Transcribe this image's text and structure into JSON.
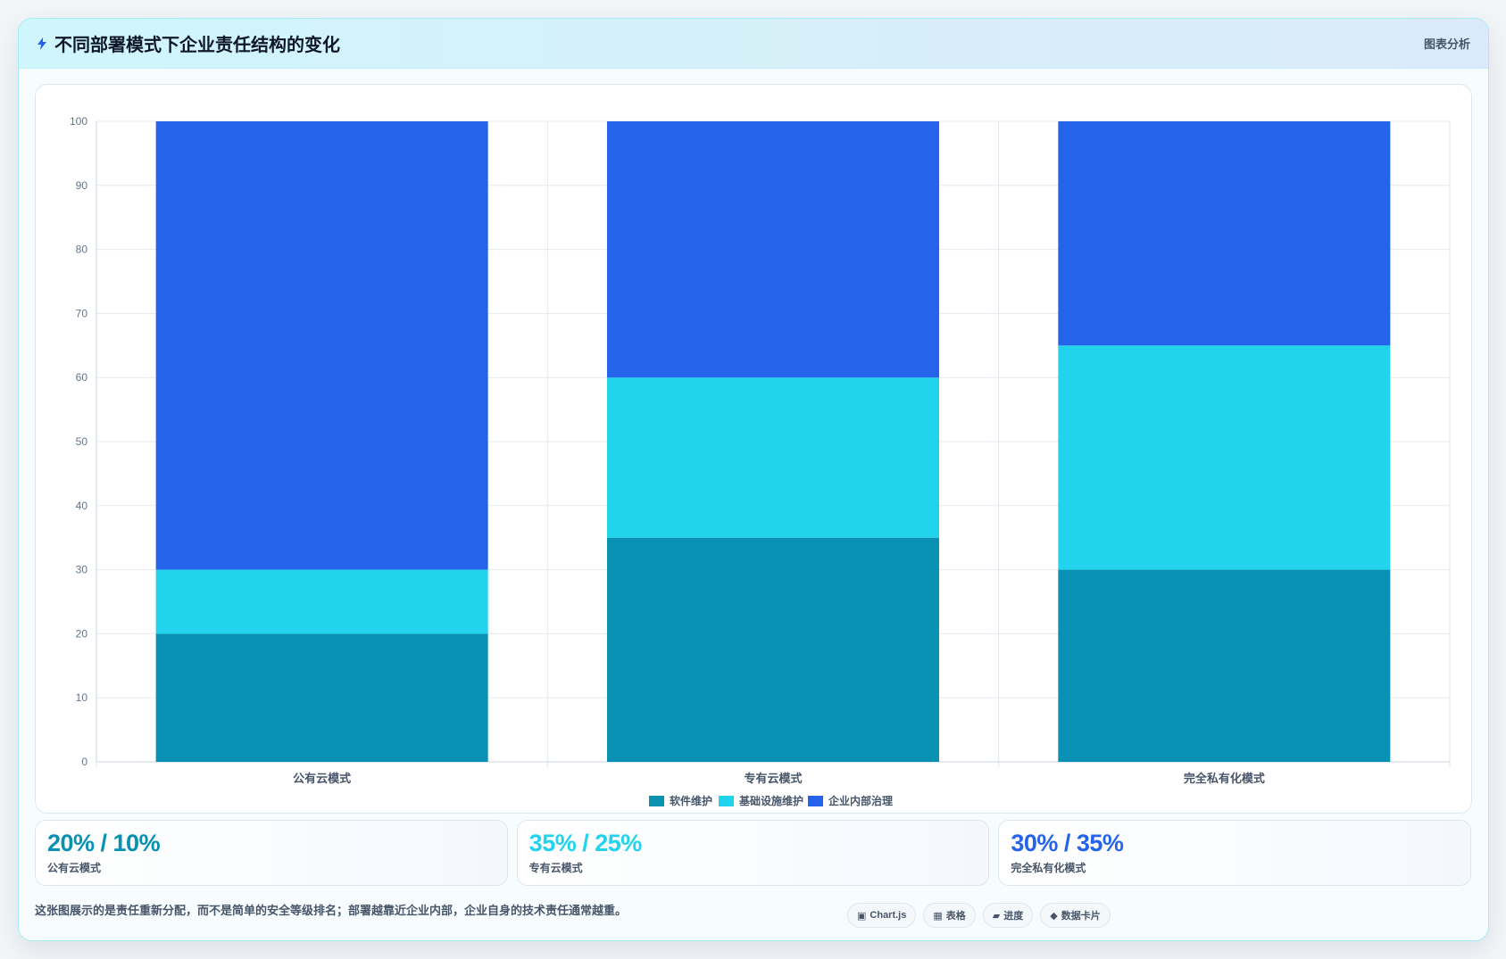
{
  "header": {
    "title": "不同部署模式下企业责任结构的变化",
    "tag": "图表分析",
    "icon": "bolt-icon"
  },
  "colors": {
    "software": "#0891b2",
    "infra": "#22d3ee",
    "governance": "#2563eb"
  },
  "chart_data": {
    "type": "bar",
    "stacked": true,
    "categories": [
      "公有云模式",
      "专有云模式",
      "完全私有化模式"
    ],
    "series": [
      {
        "name": "软件维护",
        "values": [
          20,
          35,
          30
        ],
        "color": "#0891b2"
      },
      {
        "name": "基础设施维护",
        "values": [
          10,
          25,
          35
        ],
        "color": "#22d3ee"
      },
      {
        "name": "企业内部治理",
        "values": [
          70,
          40,
          35
        ],
        "color": "#2563eb"
      }
    ],
    "ylim": [
      0,
      100
    ],
    "yticks": [
      0,
      10,
      20,
      30,
      40,
      50,
      60,
      70,
      80,
      90,
      100
    ],
    "grid": true,
    "legend": "bottom"
  },
  "stats": [
    {
      "value": "20% / 10%",
      "label": "公有云模式",
      "color": "#0891b2"
    },
    {
      "value": "35% / 25%",
      "label": "专有云模式",
      "color": "#22d3ee"
    },
    {
      "value": "30% / 35%",
      "label": "完全私有化模式",
      "color": "#2563eb"
    }
  ],
  "footer": {
    "note": "这张图展示的是责任重新分配，而不是简单的安全等级排名；部署越靠近企业内部，企业自身的技术责任通常越重。",
    "chips": [
      {
        "icon": "▣",
        "label": "Chart.js"
      },
      {
        "icon": "▦",
        "label": "表格"
      },
      {
        "icon": "▰",
        "label": "进度"
      },
      {
        "icon": "◆",
        "label": "数据卡片"
      }
    ]
  }
}
